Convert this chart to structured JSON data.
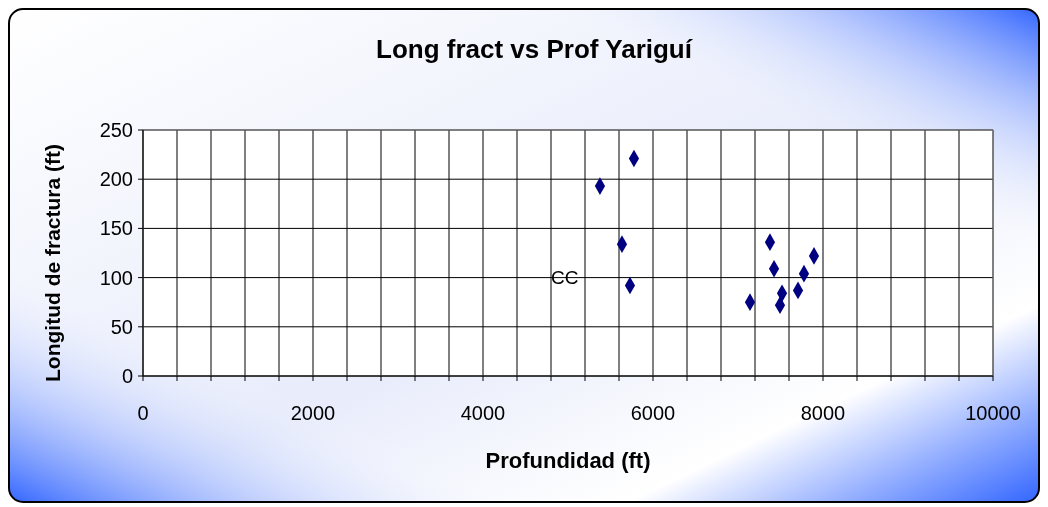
{
  "chart_data": {
    "type": "scatter",
    "title": "Long fract  vs  Prof  Yariguí",
    "xlabel": "Profundidad  (ft)",
    "ylabel": "Longitud de fractura (ft)",
    "x": [
      5376,
      5776,
      5635,
      5729,
      7141,
      7376,
      7424,
      7518,
      7494,
      7706,
      7776,
      7894
    ],
    "values": [
      193,
      221,
      134,
      92,
      75,
      136,
      109,
      84,
      72,
      87,
      104,
      122
    ],
    "color": "#000080",
    "marker": "diamond",
    "grid": true,
    "xlim": [
      0,
      10000
    ],
    "xticks": [
      0,
      {
        "value": 400,
        "label": null
      },
      {
        "value": 800,
        "label": null
      },
      {
        "value": 1200,
        "label": null
      },
      {
        "value": 1600,
        "label": null
      },
      2000,
      {
        "value": 2400,
        "label": null
      },
      {
        "value": 2800,
        "label": null
      },
      {
        "value": 3200,
        "label": null
      },
      {
        "value": 3600,
        "label": null
      },
      4000,
      {
        "value": 4400,
        "label": null
      },
      {
        "value": 4800,
        "label": null
      },
      {
        "value": 5200,
        "label": null
      },
      {
        "value": 5600,
        "label": null
      },
      6000,
      {
        "value": 6400,
        "label": null
      },
      {
        "value": 6800,
        "label": null
      },
      {
        "value": 7200,
        "label": null
      },
      {
        "value": 7600,
        "label": null
      },
      8000,
      {
        "value": 8400,
        "label": null
      },
      {
        "value": 8800,
        "label": null
      },
      {
        "value": 9200,
        "label": null
      },
      {
        "value": 9600,
        "label": null
      },
      10000
    ],
    "ylim": [
      0,
      250
    ],
    "yticks": [
      0,
      50,
      100,
      150,
      200,
      250
    ],
    "annotations": [
      "CC"
    ]
  }
}
